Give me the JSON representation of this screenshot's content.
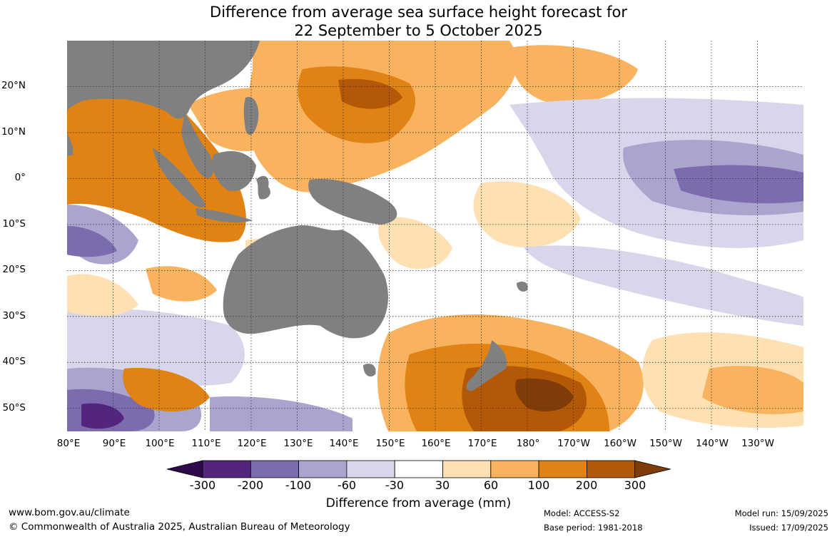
{
  "title_line1": "Difference from average sea surface height forecast for",
  "title_line2": "22 September to 5 October 2025",
  "lat_labels": [
    "20°N",
    "10°N",
    "0°",
    "10°S",
    "20°S",
    "30°S",
    "40°S",
    "50°S"
  ],
  "lon_labels": [
    "80°E",
    "90°E",
    "100°E",
    "110°E",
    "120°E",
    "130°E",
    "140°E",
    "150°E",
    "160°E",
    "170°E",
    "180°",
    "170°W",
    "160°W",
    "150°W",
    "140°W",
    "130°W"
  ],
  "colorbar": {
    "title": "Difference from average (mm)",
    "ticks": [
      "-300",
      "-200",
      "-100",
      "-60",
      "-30",
      "30",
      "60",
      "100",
      "200",
      "300"
    ],
    "colors": [
      "#2e0a4a",
      "#54257f",
      "#7c6cad",
      "#aaa5cf",
      "#d7d6ea",
      "#ffffff",
      "#fee0b3",
      "#f9b25e",
      "#e08214",
      "#b35806",
      "#7f3b08"
    ]
  },
  "land_color": "#808080",
  "footer": {
    "url": "www.bom.gov.au/climate",
    "copyright": "© Commonwealth of Australia 2025, Australian Bureau of Meteorology",
    "model": "Model: ACCESS-S2",
    "base_period": "Base period: 1981-2018",
    "model_run": "Model run: 15/09/2025",
    "issued": "Issued: 17/09/2025"
  }
}
